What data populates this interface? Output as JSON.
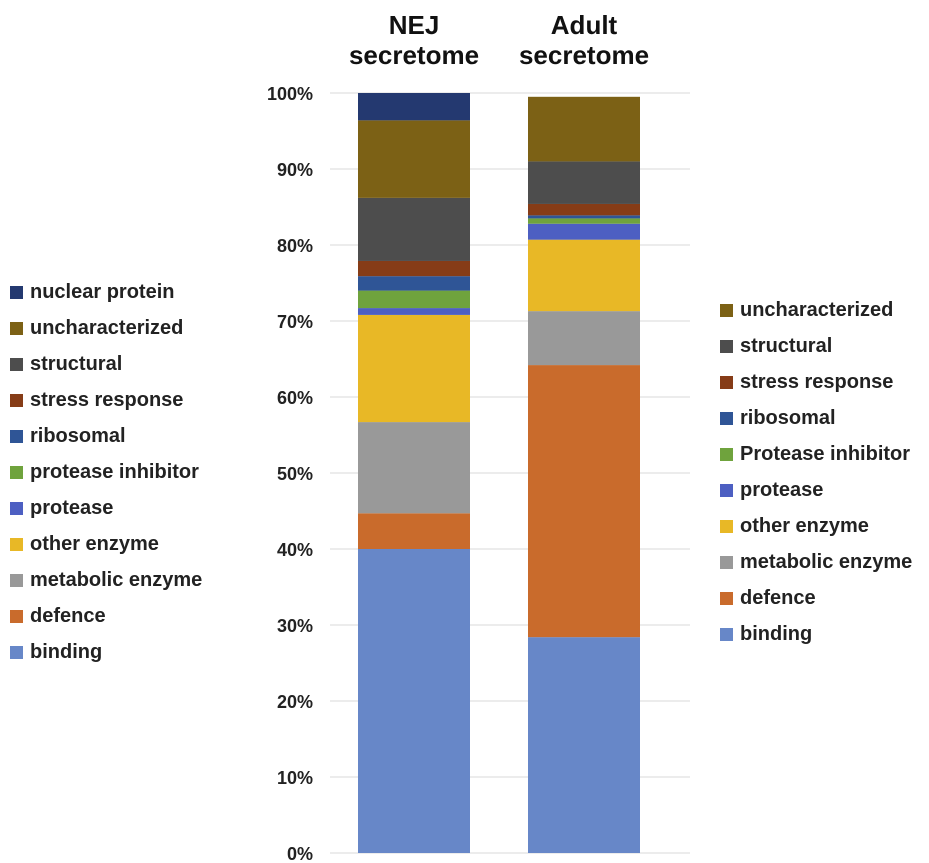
{
  "chart_data": {
    "type": "bar",
    "stacked": true,
    "categories": [
      {
        "line1": "NEJ",
        "line2": "secretome"
      },
      {
        "line1": "Adult",
        "line2": "secretome"
      }
    ],
    "ylim": [
      0,
      100
    ],
    "yticks": [
      "0%",
      "10%",
      "20%",
      "30%",
      "40%",
      "50%",
      "60%",
      "70%",
      "80%",
      "90%",
      "100%"
    ],
    "grid": true,
    "series": [
      {
        "name": "binding",
        "color": "#6787c8",
        "values": [
          40.0,
          28.4
        ]
      },
      {
        "name": "defence",
        "color": "#c96b2c",
        "values": [
          4.7,
          35.8
        ]
      },
      {
        "name": "metabolic enzyme",
        "color": "#999999",
        "values": [
          12.0,
          7.1
        ]
      },
      {
        "name": "other enzyme",
        "color": "#e8b826",
        "values": [
          14.1,
          9.4
        ]
      },
      {
        "name": "protease",
        "color": "#4d5fc2",
        "values": [
          0.9,
          2.1
        ]
      },
      {
        "name": "protease inhibitor",
        "color": "#6fa33d",
        "values": [
          2.3,
          0.7
        ]
      },
      {
        "name": "ribosomal",
        "color": "#2f5596",
        "values": [
          1.9,
          0.4
        ]
      },
      {
        "name": "stress response",
        "color": "#863c17",
        "values": [
          2.0,
          1.5
        ]
      },
      {
        "name": "structural",
        "color": "#4d4d4d",
        "values": [
          8.3,
          5.6
        ]
      },
      {
        "name": "uncharacterized",
        "color": "#7c6115",
        "values": [
          10.2,
          8.5
        ]
      },
      {
        "name": "nuclear protein",
        "color": "#243970",
        "values": [
          3.6,
          0.0
        ]
      }
    ]
  },
  "legend_left": [
    {
      "label": "nuclear protein",
      "color": "#243970"
    },
    {
      "label": "uncharacterized",
      "color": "#7c6115"
    },
    {
      "label": "structural",
      "color": "#4d4d4d"
    },
    {
      "label": "stress response",
      "color": "#863c17"
    },
    {
      "label": "ribosomal",
      "color": "#2f5596"
    },
    {
      "label": "protease inhibitor",
      "color": "#6fa33d"
    },
    {
      "label": "protease",
      "color": "#4d5fc2"
    },
    {
      "label": "other enzyme",
      "color": "#e8b826"
    },
    {
      "label": "metabolic enzyme",
      "color": "#999999"
    },
    {
      "label": "defence",
      "color": "#c96b2c"
    },
    {
      "label": "binding",
      "color": "#6787c8"
    }
  ],
  "legend_right": [
    {
      "label": "uncharacterized",
      "color": "#7c6115"
    },
    {
      "label": "structural",
      "color": "#4d4d4d"
    },
    {
      "label": "stress response",
      "color": "#863c17"
    },
    {
      "label": "ribosomal",
      "color": "#2f5596"
    },
    {
      "label": "Protease inhibitor",
      "color": "#6fa33d"
    },
    {
      "label": "protease",
      "color": "#4d5fc2"
    },
    {
      "label": "other enzyme",
      "color": "#e8b826"
    },
    {
      "label": "metabolic enzyme",
      "color": "#999999"
    },
    {
      "label": "defence",
      "color": "#c96b2c"
    },
    {
      "label": "binding",
      "color": "#6787c8"
    }
  ]
}
